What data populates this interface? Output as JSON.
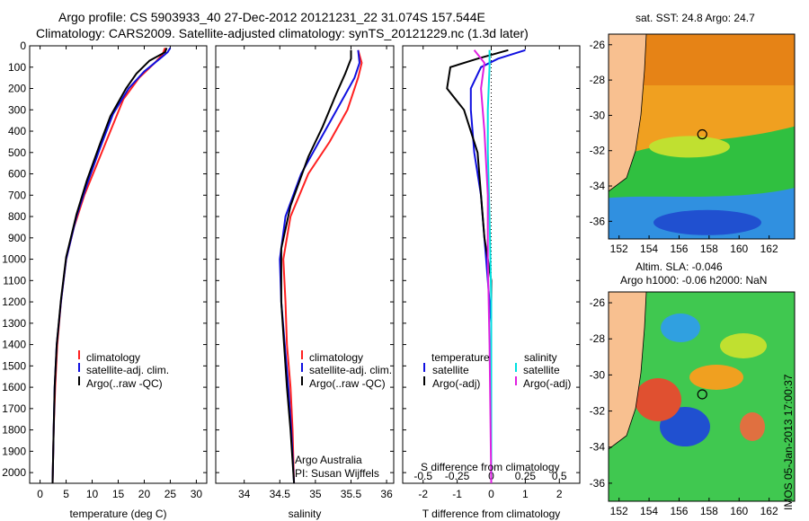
{
  "header": {
    "line1": "Argo profile: CS 5903933_40 27-Dec-2012 20121231_22 31.074S 157.544E",
    "line2": "Climatology: CARS2009. Satellite-adjusted climatology: synTS_20121229.nc (1.3d later)"
  },
  "colors": {
    "climatology": "#ff2020",
    "satellite": "#1010e0",
    "argo": "#000000",
    "salinity_sat": "#00e0e0",
    "salinity_argo": "#e020e0",
    "land": "#f8c090"
  },
  "chart_data": [
    {
      "type": "line",
      "xlabel": "temperature (deg C)",
      "ylabel": "",
      "xlim": [
        -2,
        32
      ],
      "ylim": [
        2050,
        0
      ],
      "xticks": [
        0,
        5,
        10,
        15,
        20,
        25,
        30
      ],
      "yticks": [
        0,
        100,
        200,
        300,
        400,
        500,
        600,
        700,
        800,
        900,
        1000,
        1100,
        1200,
        1300,
        1400,
        1500,
        1600,
        1700,
        1800,
        1900,
        2000
      ],
      "legend": [
        "climatology",
        "satellite-adj. clim.",
        "Argo(..raw -QC)"
      ],
      "series": [
        {
          "name": "climatology",
          "color": "#ff2020",
          "points": [
            [
              24,
              10
            ],
            [
              23.5,
              40
            ],
            [
              22,
              80
            ],
            [
              19,
              150
            ],
            [
              16,
              250
            ],
            [
              13.5,
              400
            ],
            [
              11,
              550
            ],
            [
              8.5,
              700
            ],
            [
              6.5,
              850
            ],
            [
              5,
              1000
            ],
            [
              4,
              1200
            ],
            [
              3.3,
              1400
            ],
            [
              2.9,
              1600
            ],
            [
              2.6,
              1800
            ],
            [
              2.4,
              2050
            ]
          ]
        },
        {
          "name": "satellite-adj. clim.",
          "color": "#1010e0",
          "points": [
            [
              25,
              10
            ],
            [
              24.5,
              30
            ],
            [
              23,
              60
            ],
            [
              20,
              120
            ],
            [
              17,
              200
            ],
            [
              14,
              320
            ],
            [
              11.5,
              480
            ],
            [
              9,
              650
            ],
            [
              7,
              800
            ],
            [
              5,
              1000
            ],
            [
              4,
              1200
            ],
            [
              3.2,
              1400
            ],
            [
              2.8,
              1600
            ],
            [
              2.6,
              1800
            ],
            [
              2.4,
              2050
            ]
          ]
        },
        {
          "name": "Argo(..raw -QC)",
          "color": "#000000",
          "points": [
            [
              24.3,
              10
            ],
            [
              24,
              30
            ],
            [
              21,
              70
            ],
            [
              18.5,
              130
            ],
            [
              16.5,
              200
            ],
            [
              13.5,
              330
            ],
            [
              11.5,
              460
            ],
            [
              9,
              630
            ],
            [
              7,
              790
            ],
            [
              5,
              990
            ],
            [
              4,
              1190
            ],
            [
              3.2,
              1400
            ],
            [
              2.8,
              1600
            ],
            [
              2.6,
              1800
            ],
            [
              2.4,
              2050
            ]
          ]
        }
      ]
    },
    {
      "type": "line",
      "xlabel": "salinity",
      "ylabel": "",
      "xlim": [
        33.6,
        36.1
      ],
      "ylim": [
        2050,
        0
      ],
      "xticks": [
        34,
        34.5,
        35,
        35.5,
        36
      ],
      "legend": [
        "climatology",
        "satellite-adj. clim.",
        "Argo(..raw -QC)"
      ],
      "annotation": [
        "Argo Australia",
        "PI: Susan Wijffels"
      ],
      "series": [
        {
          "name": "climatology",
          "color": "#ff2020",
          "points": [
            [
              35.6,
              20
            ],
            [
              35.65,
              80
            ],
            [
              35.6,
              150
            ],
            [
              35.45,
              300
            ],
            [
              35.2,
              450
            ],
            [
              34.9,
              600
            ],
            [
              34.65,
              800
            ],
            [
              34.55,
              1000
            ],
            [
              34.58,
              1200
            ],
            [
              34.6,
              1400
            ],
            [
              34.65,
              1600
            ],
            [
              34.68,
              1800
            ],
            [
              34.7,
              2050
            ]
          ]
        },
        {
          "name": "satellite-adj. clim.",
          "color": "#1010e0",
          "points": [
            [
              35.6,
              20
            ],
            [
              35.62,
              80
            ],
            [
              35.55,
              150
            ],
            [
              35.3,
              300
            ],
            [
              35.05,
              450
            ],
            [
              34.8,
              600
            ],
            [
              34.58,
              800
            ],
            [
              34.5,
              1000
            ],
            [
              34.52,
              1200
            ],
            [
              34.57,
              1400
            ],
            [
              34.62,
              1600
            ],
            [
              34.66,
              1800
            ],
            [
              34.7,
              2050
            ]
          ]
        },
        {
          "name": "Argo(..raw -QC)",
          "color": "#000000",
          "points": [
            [
              35.5,
              20
            ],
            [
              35.5,
              60
            ],
            [
              35.42,
              130
            ],
            [
              35.3,
              220
            ],
            [
              35.1,
              380
            ],
            [
              34.9,
              520
            ],
            [
              34.65,
              750
            ],
            [
              34.52,
              950
            ],
            [
              34.52,
              1200
            ],
            [
              34.56,
              1400
            ],
            [
              34.6,
              1600
            ],
            [
              34.65,
              1800
            ],
            [
              34.7,
              2050
            ]
          ]
        }
      ]
    },
    {
      "type": "line",
      "xlabel": "T difference from climatology",
      "xlabel_top": "S difference from climatology",
      "ylabel": "",
      "xlim": [
        -2.6,
        2.6
      ],
      "ylim": [
        2050,
        0
      ],
      "xticks": [
        -2,
        -1,
        0,
        1,
        2
      ],
      "xticks_top": [
        "-0.5",
        "-0.25",
        "0",
        "0.25",
        "0.5"
      ],
      "legend_titles": [
        "temperature",
        "salinity"
      ],
      "legend": [
        "satellite",
        "Argo(-adj)",
        "satellite",
        "Argo(-adj)"
      ],
      "series": [
        {
          "name": "satellite",
          "color": "#1010e0",
          "points": [
            [
              1,
              20
            ],
            [
              0.2,
              60
            ],
            [
              -0.3,
              100
            ],
            [
              -0.6,
              200
            ],
            [
              -0.6,
              300
            ],
            [
              -0.5,
              500
            ],
            [
              -0.3,
              700
            ],
            [
              -0.2,
              900
            ],
            [
              -0.1,
              1100
            ],
            [
              0,
              1300
            ],
            [
              0,
              1500
            ],
            [
              0,
              2050
            ]
          ]
        },
        {
          "name": "Argo(-adj)",
          "color": "#000000",
          "points": [
            [
              0.5,
              20
            ],
            [
              -0.4,
              60
            ],
            [
              -1.2,
              100
            ],
            [
              -1.3,
              200
            ],
            [
              -0.8,
              300
            ],
            [
              -0.4,
              500
            ],
            [
              -0.3,
              700
            ],
            [
              -0.2,
              900
            ],
            [
              0,
              1100
            ],
            [
              0,
              1400
            ],
            [
              0,
              2050
            ]
          ]
        },
        {
          "name": "satellite",
          "color": "#00e0e0",
          "points": [
            [
              -0.05,
              20
            ],
            [
              -0.05,
              100
            ],
            [
              -0.1,
              300
            ],
            [
              -0.1,
              500
            ],
            [
              -0.05,
              800
            ],
            [
              0,
              1200
            ],
            [
              0,
              2050
            ]
          ]
        },
        {
          "name": "Argo(-adj)",
          "color": "#e020e0",
          "points": [
            [
              -0.5,
              20
            ],
            [
              -0.2,
              80
            ],
            [
              -0.3,
              200
            ],
            [
              -0.2,
              400
            ],
            [
              -0.1,
              700
            ],
            [
              -0.1,
              1000
            ],
            [
              -0.05,
              1400
            ],
            [
              0,
              2050
            ]
          ]
        }
      ]
    },
    {
      "type": "heatmap",
      "title": "sat. SST: 24.8 Argo: 24.7",
      "xticks": [
        152,
        154,
        156,
        158,
        160,
        162
      ],
      "yticks": [
        -26,
        -28,
        -30,
        -32,
        -34,
        -36
      ],
      "xlim": [
        151.3,
        163.7
      ],
      "ylim": [
        -37,
        -25.4
      ],
      "argo_position": [
        157.544,
        -31.074
      ]
    },
    {
      "type": "heatmap",
      "title_line1": "Altim. SLA: -0.046",
      "title_line2": "Argo h1000: -0.06 h2000: NaN",
      "xticks": [
        152,
        154,
        156,
        158,
        160,
        162
      ],
      "yticks": [
        -26,
        -28,
        -30,
        -32,
        -34,
        -36
      ],
      "xlim": [
        151.3,
        163.7
      ],
      "ylim": [
        -37,
        -25.4
      ],
      "argo_position": [
        157.544,
        -31.074
      ]
    }
  ],
  "stamp": "IMOS 05-Jan-2013 17:00:37"
}
